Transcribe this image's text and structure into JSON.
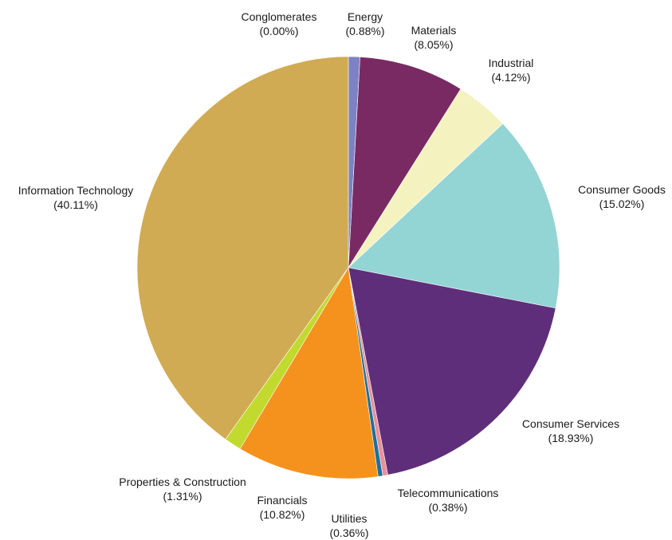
{
  "chart_data": {
    "type": "pie",
    "title": "",
    "start": "12 o'clock",
    "direction": "clockwise",
    "legend": "none",
    "slices": [
      {
        "label": "Conglomerates",
        "display": "(0.00%)",
        "value": 0.0,
        "color": "#7b7f9e"
      },
      {
        "label": "Energy",
        "display": "(0.88%)",
        "value": 0.88,
        "color": "#7c82c4"
      },
      {
        "label": "Materials",
        "display": "(8.05%)",
        "value": 8.05,
        "color": "#7a2a62"
      },
      {
        "label": "Industrial",
        "display": "(4.12%)",
        "value": 4.12,
        "color": "#f4f2bf"
      },
      {
        "label": "Consumer Goods",
        "display": "(15.02%)",
        "value": 15.02,
        "color": "#93d4d4"
      },
      {
        "label": "Consumer Services",
        "display": "(18.93%)",
        "value": 18.93,
        "color": "#5f2e7a"
      },
      {
        "label": "Telecommunications",
        "display": "(0.38%)",
        "value": 0.38,
        "color": "#e8909a"
      },
      {
        "label": "Utilities",
        "display": "(0.36%)",
        "value": 0.36,
        "color": "#1f6f9a"
      },
      {
        "label": "Financials",
        "display": "(10.82%)",
        "value": 10.82,
        "color": "#f5921e"
      },
      {
        "label": "Properties & Construction",
        "display": "(1.31%)",
        "value": 1.31,
        "color": "#c2d92e"
      },
      {
        "label": "Information Technology",
        "display": "(40.11%)",
        "value": 40.11,
        "color": "#d1ab53"
      }
    ]
  }
}
